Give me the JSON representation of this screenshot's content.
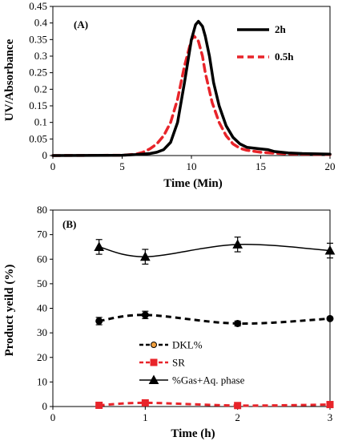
{
  "chart_data": [
    {
      "type": "line",
      "panel_label": "(A)",
      "xlabel": "Time (Min)",
      "ylabel": "UV/Absorbance",
      "xlim": [
        0,
        20
      ],
      "ylim": [
        0,
        0.45
      ],
      "xticks": [
        "0",
        "5",
        "10",
        "15",
        "20"
      ],
      "yticks": [
        "0",
        "0.05",
        "0.1",
        "0.15",
        "0.2",
        "0.25",
        "0.3",
        "0.35",
        "0.4",
        "0.45"
      ],
      "grid": false,
      "legend": "top-right",
      "series": [
        {
          "name": "2h",
          "color": "#000000",
          "style": "solid",
          "x": [
            0,
            5,
            6,
            7,
            7.5,
            8,
            8.5,
            9,
            9.5,
            10,
            10.3,
            10.5,
            10.8,
            11,
            11.3,
            11.6,
            12,
            12.5,
            13,
            13.5,
            14,
            15,
            15.5,
            16,
            17,
            18,
            19,
            20
          ],
          "y": [
            0,
            0.001,
            0.003,
            0.006,
            0.01,
            0.018,
            0.04,
            0.1,
            0.22,
            0.35,
            0.395,
            0.405,
            0.39,
            0.36,
            0.3,
            0.22,
            0.15,
            0.09,
            0.055,
            0.035,
            0.025,
            0.02,
            0.018,
            0.012,
            0.008,
            0.006,
            0.005,
            0.004
          ]
        },
        {
          "name": "0.5h",
          "color": "#e8242a",
          "style": "dashed",
          "x": [
            0,
            5,
            6,
            6.5,
            7,
            7.5,
            8,
            8.5,
            9,
            9.5,
            10,
            10.2,
            10.5,
            10.8,
            11,
            11.5,
            12,
            12.5,
            13,
            13.5,
            14,
            15,
            16,
            17,
            18,
            20
          ],
          "y": [
            0,
            0.001,
            0.004,
            0.01,
            0.02,
            0.035,
            0.06,
            0.1,
            0.17,
            0.27,
            0.35,
            0.36,
            0.345,
            0.3,
            0.25,
            0.16,
            0.1,
            0.06,
            0.035,
            0.022,
            0.016,
            0.01,
            0.007,
            0.005,
            0.004,
            0.003
          ]
        }
      ]
    },
    {
      "type": "line",
      "panel_label": "(B)",
      "xlabel": "Time (h)",
      "ylabel": "Product yeild (%)",
      "xlim": [
        0,
        3
      ],
      "ylim": [
        0,
        80
      ],
      "xticks": [
        "0",
        "1",
        "2",
        "3"
      ],
      "yticks": [
        "0",
        "10",
        "20",
        "30",
        "40",
        "50",
        "60",
        "70",
        "80"
      ],
      "grid": false,
      "legend": "center",
      "x": [
        0.5,
        1,
        2,
        3
      ],
      "series": [
        {
          "name": "DKL%",
          "color": "#000000",
          "marker": "circle",
          "style": "dashed",
          "values": [
            34.8,
            37.3,
            33.8,
            35.8
          ],
          "errors": [
            1.5,
            1.5,
            1.0,
            0.5
          ]
        },
        {
          "name": "SR",
          "color": "#e8242a",
          "marker": "square",
          "style": "dashed",
          "values": [
            0.5,
            1.5,
            0.4,
            0.8
          ],
          "errors": [
            0.3,
            0.5,
            0.3,
            0.3
          ]
        },
        {
          "name": "%Gas+Aq. phase",
          "color": "#000000",
          "marker": "triangle",
          "style": "solid",
          "values": [
            65,
            61,
            66,
            63.5
          ],
          "errors": [
            3,
            3,
            3,
            3
          ]
        }
      ]
    }
  ]
}
